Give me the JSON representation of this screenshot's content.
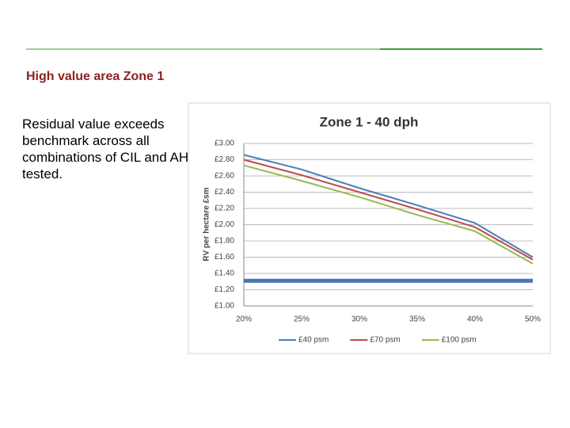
{
  "slide": {
    "title": "High value area Zone 1",
    "body": "Residual value exceeds benchmark across all combinations of CIL and AH tested."
  },
  "chart_data": {
    "type": "line",
    "title": "Zone 1 - 40 dph",
    "y_label": "RV per hectare £sm",
    "categories": [
      "20%",
      "25%",
      "30%",
      "35%",
      "40%",
      "50%"
    ],
    "series": [
      {
        "name": "£40 psm",
        "color": "#4a7ebb",
        "values": [
          2.86,
          2.68,
          2.45,
          2.24,
          2.02,
          1.6
        ]
      },
      {
        "name": "£70 psm",
        "color": "#be4b48",
        "values": [
          2.8,
          2.61,
          2.4,
          2.19,
          1.97,
          1.57
        ]
      },
      {
        "name": "£100 psm",
        "color": "#98b954",
        "values": [
          2.73,
          2.54,
          2.34,
          2.12,
          1.92,
          1.52
        ]
      }
    ],
    "reference_line": {
      "value": 1.31,
      "color": "#4a74b8"
    },
    "ylim": [
      1.0,
      3.0
    ],
    "yticks": [
      {
        "value": 1.0,
        "label": "£1.00"
      },
      {
        "value": 1.2,
        "label": "£1.20"
      },
      {
        "value": 1.4,
        "label": "£1.40"
      },
      {
        "value": 1.6,
        "label": "£1.60"
      },
      {
        "value": 1.8,
        "label": "£1.80"
      },
      {
        "value": 2.0,
        "label": "£2.00"
      },
      {
        "value": 2.2,
        "label": "£2.20"
      },
      {
        "value": 2.4,
        "label": "£2.40"
      },
      {
        "value": 2.6,
        "label": "£2.60"
      },
      {
        "value": 2.8,
        "label": "£2.80"
      },
      {
        "value": 3.0,
        "label": "£3.00"
      }
    ],
    "grid": true,
    "legend": "bottom"
  }
}
